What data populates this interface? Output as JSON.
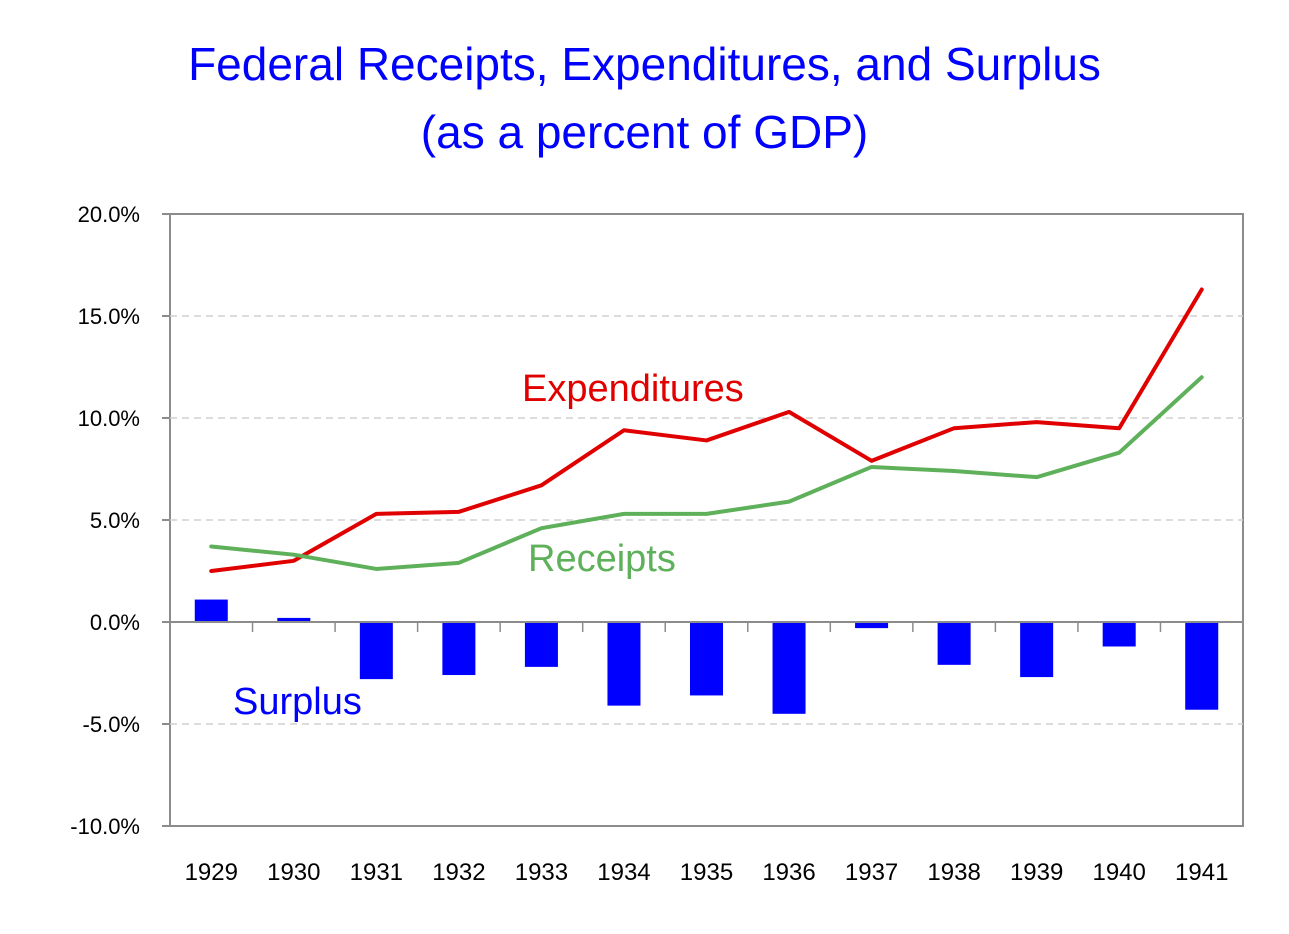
{
  "chart_data": {
    "type": "bar+line",
    "title": "Federal Receipts, Expenditures, and Surplus",
    "subtitle": "(as a percent of GDP)",
    "xlabel": "",
    "ylabel": "",
    "ylim": [
      -10,
      20
    ],
    "yticks": [
      20,
      15,
      10,
      5,
      0,
      -5,
      -10
    ],
    "ytick_labels": [
      "20.0%",
      "15.0%",
      "10.0%",
      "5.0%",
      "0.0%",
      "-5.0%",
      "-10.0%"
    ],
    "grid": "horizontal dashed",
    "categories": [
      "1929",
      "1930",
      "1931",
      "1932",
      "1933",
      "1934",
      "1935",
      "1936",
      "1937",
      "1938",
      "1939",
      "1940",
      "1941"
    ],
    "series": [
      {
        "name": "Expenditures",
        "type": "line",
        "color": "#e00000",
        "values": [
          2.5,
          3.0,
          5.3,
          5.4,
          6.7,
          9.4,
          8.9,
          10.3,
          7.9,
          9.5,
          9.8,
          9.5,
          16.3
        ]
      },
      {
        "name": "Receipts",
        "type": "line",
        "color": "#5fb05a",
        "values": [
          3.7,
          3.3,
          2.6,
          2.9,
          4.6,
          5.3,
          5.3,
          5.9,
          7.6,
          7.4,
          7.1,
          8.3,
          12.0
        ]
      },
      {
        "name": "Surplus",
        "type": "bar",
        "color": "#0000ff",
        "values": [
          1.1,
          0.2,
          -2.8,
          -2.6,
          -2.2,
          -4.1,
          -3.6,
          -4.5,
          -0.3,
          -2.1,
          -2.7,
          -1.2,
          -4.3
        ]
      }
    ],
    "annotations": [
      {
        "text": "Expenditures",
        "color": "#e00000"
      },
      {
        "text": "Receipts",
        "color": "#5fb05a"
      },
      {
        "text": "Surplus",
        "color": "#0000ff"
      }
    ],
    "legend": "none (inline labels)"
  }
}
